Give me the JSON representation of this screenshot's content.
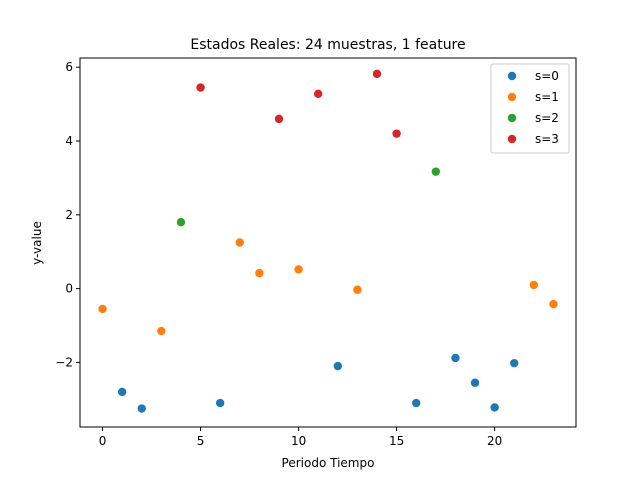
{
  "chart_data": {
    "type": "scatter",
    "title": "Estados Reales: 24 muestras, 1 feature",
    "xlabel": "Periodo Tiempo",
    "ylabel": "y-value",
    "xlim": [
      -1.15,
      24.15
    ],
    "ylim": [
      -3.75,
      6.25
    ],
    "xticks": [
      0,
      5,
      10,
      15,
      20
    ],
    "yticks": [
      -2,
      0,
      2,
      4,
      6
    ],
    "grid": false,
    "legend_position": "top-right",
    "series": [
      {
        "name": "s=0",
        "color": "#1f77b4",
        "x": [
          1,
          2,
          6,
          12,
          16,
          18,
          19,
          20,
          21
        ],
        "y": [
          -2.8,
          -3.25,
          -3.1,
          -2.1,
          -3.1,
          -1.88,
          -2.55,
          -3.22,
          -2.02
        ]
      },
      {
        "name": "s=1",
        "color": "#ff7f0e",
        "x": [
          0,
          3,
          7,
          8,
          10,
          13,
          22,
          23
        ],
        "y": [
          -0.55,
          -1.15,
          1.25,
          0.42,
          0.52,
          -0.03,
          0.1,
          -0.42
        ]
      },
      {
        "name": "s=2",
        "color": "#2ca02c",
        "x": [
          4,
          17
        ],
        "y": [
          1.8,
          3.17
        ]
      },
      {
        "name": "s=3",
        "color": "#d62728",
        "x": [
          5,
          9,
          11,
          14,
          15
        ],
        "y": [
          5.45,
          4.6,
          5.28,
          5.82,
          4.2
        ]
      }
    ]
  }
}
